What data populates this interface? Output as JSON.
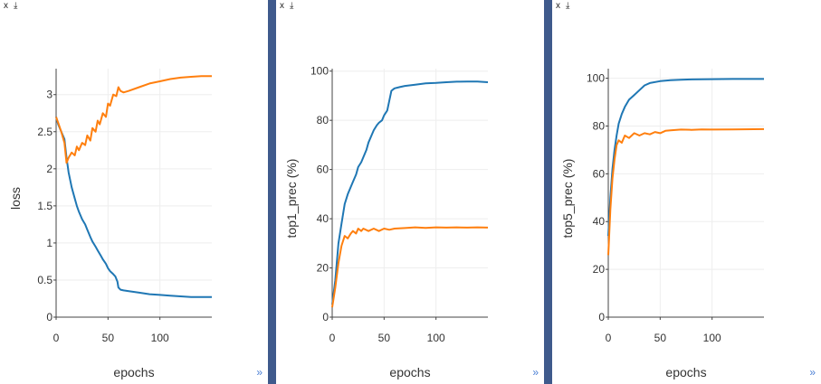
{
  "controls": {
    "close": "x",
    "download": "⤓",
    "expand": "»"
  },
  "colors": {
    "series_blue": "#1f77b4",
    "series_orange": "#ff7f0e",
    "grid": "#eeeeee",
    "axis": "#444444"
  },
  "chart_data": [
    {
      "type": "line",
      "xlabel": "epochs",
      "ylabel": "loss",
      "xlim": [
        0,
        150
      ],
      "ylim": [
        0,
        3.35
      ],
      "xticks": [
        0,
        50,
        100
      ],
      "yticks": [
        0,
        0.5,
        1,
        1.5,
        2,
        2.5,
        3
      ],
      "ytick_labels": [
        "0",
        "0.5",
        "1",
        "1.5",
        "2",
        "2.5",
        "3"
      ],
      "grid": true,
      "series": [
        {
          "color": "#1f77b4",
          "x": [
            0,
            2,
            5,
            8,
            10,
            12,
            15,
            18,
            20,
            22,
            25,
            28,
            30,
            33,
            35,
            38,
            40,
            43,
            45,
            48,
            50,
            52,
            55,
            57,
            59,
            60,
            62,
            65,
            70,
            80,
            90,
            100,
            110,
            120,
            130,
            140,
            150
          ],
          "y": [
            2.7,
            2.6,
            2.5,
            2.4,
            2.15,
            1.95,
            1.75,
            1.6,
            1.5,
            1.42,
            1.32,
            1.25,
            1.18,
            1.08,
            1.02,
            0.95,
            0.9,
            0.83,
            0.78,
            0.72,
            0.66,
            0.62,
            0.58,
            0.55,
            0.48,
            0.4,
            0.37,
            0.36,
            0.35,
            0.33,
            0.31,
            0.3,
            0.29,
            0.28,
            0.27,
            0.27,
            0.27
          ]
        },
        {
          "color": "#ff7f0e",
          "x": [
            0,
            2,
            5,
            8,
            10,
            12,
            15,
            18,
            20,
            22,
            25,
            28,
            30,
            33,
            35,
            38,
            40,
            42,
            45,
            48,
            50,
            52,
            55,
            58,
            60,
            62,
            65,
            70,
            80,
            90,
            100,
            110,
            120,
            130,
            140,
            150
          ],
          "y": [
            2.7,
            2.62,
            2.5,
            2.35,
            2.08,
            2.15,
            2.22,
            2.18,
            2.3,
            2.25,
            2.35,
            2.32,
            2.45,
            2.38,
            2.55,
            2.5,
            2.65,
            2.6,
            2.75,
            2.7,
            2.88,
            2.85,
            3.0,
            2.98,
            3.1,
            3.05,
            3.03,
            3.05,
            3.1,
            3.15,
            3.18,
            3.21,
            3.23,
            3.24,
            3.25,
            3.25
          ]
        }
      ]
    },
    {
      "type": "line",
      "xlabel": "epochs",
      "ylabel": "top1_prec (%)",
      "xlim": [
        0,
        150
      ],
      "ylim": [
        0,
        101
      ],
      "xticks": [
        0,
        50,
        100
      ],
      "yticks": [
        0,
        20,
        40,
        60,
        80,
        100
      ],
      "ytick_labels": [
        "0",
        "20",
        "40",
        "60",
        "80",
        "100"
      ],
      "grid": true,
      "series": [
        {
          "color": "#1f77b4",
          "x": [
            0,
            3,
            6,
            9,
            12,
            15,
            18,
            20,
            23,
            25,
            28,
            30,
            33,
            35,
            38,
            40,
            43,
            45,
            48,
            50,
            53,
            55,
            57,
            60,
            65,
            70,
            80,
            90,
            100,
            110,
            120,
            130,
            140,
            150
          ],
          "y": [
            5,
            15,
            30,
            38,
            46,
            50,
            53,
            55,
            58,
            61,
            63,
            65,
            68,
            71,
            74,
            76,
            78,
            79,
            80,
            82,
            84,
            88,
            92,
            93,
            93.5,
            94,
            94.5,
            95,
            95.2,
            95.5,
            95.7,
            95.8,
            95.8,
            95.5
          ]
        },
        {
          "color": "#ff7f0e",
          "x": [
            0,
            3,
            6,
            9,
            12,
            15,
            18,
            20,
            23,
            25,
            28,
            30,
            35,
            40,
            45,
            50,
            55,
            60,
            70,
            80,
            90,
            100,
            110,
            120,
            130,
            140,
            150
          ],
          "y": [
            4,
            12,
            22,
            29,
            33,
            32,
            34,
            35,
            34,
            36,
            35,
            36,
            35,
            36,
            35,
            36,
            35.5,
            36,
            36.2,
            36.5,
            36.3,
            36.5,
            36.4,
            36.5,
            36.4,
            36.5,
            36.4
          ]
        }
      ]
    },
    {
      "type": "line",
      "xlabel": "epochs",
      "ylabel": "top5_prec (%)",
      "xlim": [
        0,
        150
      ],
      "ylim": [
        0,
        104
      ],
      "xticks": [
        0,
        50,
        100
      ],
      "yticks": [
        0,
        20,
        40,
        60,
        80,
        100
      ],
      "ytick_labels": [
        "0",
        "20",
        "40",
        "60",
        "80",
        "100"
      ],
      "grid": true,
      "series": [
        {
          "color": "#1f77b4",
          "x": [
            0,
            2,
            4,
            6,
            8,
            10,
            13,
            16,
            20,
            25,
            30,
            35,
            40,
            50,
            60,
            70,
            80,
            100,
            120,
            150
          ],
          "y": [
            34,
            50,
            62,
            70,
            76,
            81,
            85,
            88,
            91,
            93,
            95,
            97,
            98,
            98.8,
            99.2,
            99.4,
            99.5,
            99.6,
            99.7,
            99.7
          ]
        },
        {
          "color": "#ff7f0e",
          "x": [
            0,
            2,
            4,
            6,
            8,
            10,
            13,
            16,
            20,
            25,
            30,
            35,
            40,
            45,
            50,
            55,
            60,
            70,
            80,
            90,
            100,
            120,
            150
          ],
          "y": [
            26,
            45,
            58,
            66,
            72,
            74,
            73,
            76,
            75,
            77,
            76,
            77,
            76.5,
            77.5,
            77,
            78,
            78.2,
            78.5,
            78.4,
            78.6,
            78.5,
            78.6,
            78.7
          ]
        }
      ]
    }
  ]
}
